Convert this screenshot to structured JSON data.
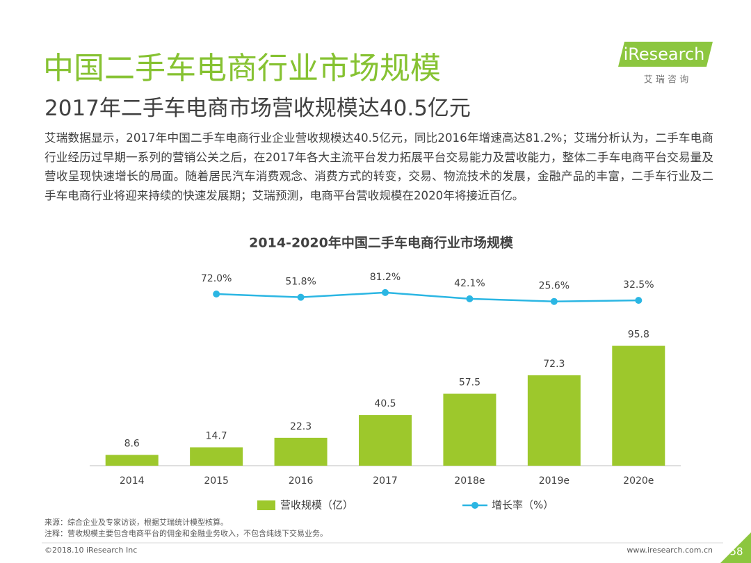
{
  "header": {
    "title": "中国二手车电商行业市场规模",
    "subtitle": "2017年二手车电商市场营收规模达40.5亿元",
    "body": "艾瑞数据显示，2017年中国二手车电商行业企业营收规模达40.5亿元，同比2016年增速高达81.2%；艾瑞分析认为，二手车电商行业经历过早期一系列的营销公关之后，在2017年各大主流平台发力拓展平台交易能力及营收能力，整体二手车电商平台交易量及营收呈现快速增长的局面。随着居民汽车消费观念、消费方式的转变，交易、物流技术的发展，金融产品的丰富，二手车行业及二手车电商行业将迎来持续的快速发展期；艾瑞预测，电商平台营收规模在2020年将接近百亿。"
  },
  "logo": {
    "name": "iResearch",
    "tagline": "艾 瑞 咨 询"
  },
  "chart_data": {
    "type": "bar",
    "title": "2014-2020年中国二手车电商行业市场规模",
    "categories": [
      "2014",
      "2015",
      "2016",
      "2017",
      "2018e",
      "2019e",
      "2020e"
    ],
    "series": [
      {
        "name": "营收规模（亿）",
        "type": "bar",
        "color": "#9dc82c",
        "values": [
          8.6,
          14.7,
          22.3,
          40.5,
          57.5,
          72.3,
          95.8
        ]
      },
      {
        "name": "增长率（%）",
        "type": "line",
        "axis": "y2",
        "color": "#2bb6e3",
        "values": [
          null,
          72.0,
          51.8,
          81.2,
          42.1,
          25.6,
          32.5
        ],
        "value_labels": [
          null,
          "72.0%",
          "51.8%",
          "81.2%",
          "42.1%",
          "25.6%",
          "32.5%"
        ]
      }
    ],
    "ylim": [
      0,
      160
    ],
    "y2lim": [
      -1000,
      250
    ],
    "legend": "bottom"
  },
  "footer": {
    "source": "来源：综合企业及专家访谈，根据艾瑞统计模型核算。",
    "note": "注释：营收规模主要包含电商平台的佣金和金融业务收入，不包含纯线下交易业务。",
    "copyright": "©2018.10 iResearch Inc",
    "website": "www.iresearch.com.cn",
    "page": "58"
  }
}
